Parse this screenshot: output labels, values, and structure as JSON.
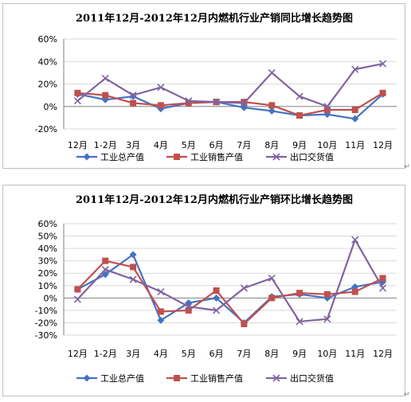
{
  "chart_data": [
    {
      "type": "line",
      "title": "2011年12月-2012年12月内燃机行业产销同比增长趋势图",
      "categories": [
        "12月",
        "1-2月",
        "3月",
        "4月",
        "5月",
        "6月",
        "7月",
        "8月",
        "9月",
        "10月",
        "11月",
        "12月"
      ],
      "ytick_labels": [
        "60%",
        "40%",
        "20%",
        "0%",
        "-20%"
      ],
      "ylim": [
        -20,
        60
      ],
      "ystep": 20,
      "grid": "horizontal",
      "legend_position": "bottom",
      "series": [
        {
          "name": "工业总产值",
          "color": "#4472C4",
          "marker": "diamond",
          "values": [
            11,
            6,
            9,
            -2,
            3,
            4,
            -1,
            -4,
            -8,
            -7,
            -11,
            11
          ]
        },
        {
          "name": "工业销售产值",
          "color": "#C0504D",
          "marker": "square",
          "values": [
            12,
            10,
            3,
            1,
            3,
            4,
            4,
            1,
            -8,
            -3,
            -3,
            12
          ]
        },
        {
          "name": "出口交货值",
          "color": "#8064A2",
          "marker": "x",
          "values": [
            5,
            25,
            10,
            17,
            5,
            4,
            3,
            30,
            9,
            0,
            33,
            38
          ]
        }
      ]
    },
    {
      "type": "line",
      "title": "2011年12月-2012年12月内燃机行业产销环比增长趋势图",
      "categories": [
        "12月",
        "1-2月",
        "3月",
        "4月",
        "5月",
        "6月",
        "7月",
        "8月",
        "9月",
        "10月",
        "11月",
        "12月"
      ],
      "ytick_labels": [
        "60%",
        "50%",
        "40%",
        "30%",
        "20%",
        "10%",
        "0%",
        "-10%",
        "-20%",
        "-30%"
      ],
      "ylim": [
        -30,
        60
      ],
      "ystep": 10,
      "grid": "horizontal",
      "legend_position": "bottom",
      "series": [
        {
          "name": "工业总产值",
          "color": "#4472C4",
          "marker": "diamond",
          "values": [
            7,
            19,
            35,
            -18,
            -4,
            0,
            -20,
            1,
            3,
            0,
            9,
            13
          ]
        },
        {
          "name": "工业销售产值",
          "color": "#C0504D",
          "marker": "square",
          "values": [
            7,
            30,
            25,
            -11,
            -10,
            6,
            -21,
            0,
            4,
            3,
            5,
            16
          ]
        },
        {
          "name": "出口交货值",
          "color": "#8064A2",
          "marker": "x",
          "values": [
            -1,
            23,
            15,
            5,
            -7,
            -10,
            8,
            16,
            -19,
            -17,
            47,
            8
          ]
        }
      ]
    }
  ]
}
